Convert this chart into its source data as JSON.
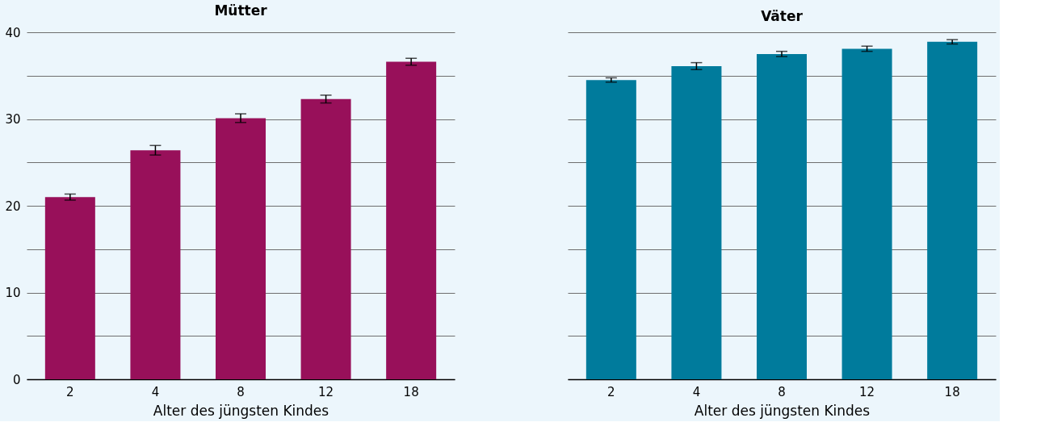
{
  "chart_data": [
    {
      "type": "bar",
      "title": "Mütter",
      "xlabel": "Alter des jüngsten Kindes",
      "categories": [
        "2",
        "4",
        "8",
        "12",
        "18"
      ],
      "values": [
        21.0,
        26.4,
        30.1,
        32.3,
        36.6
      ],
      "errors": [
        0.35,
        0.55,
        0.5,
        0.45,
        0.4
      ],
      "color": "#98105a",
      "ylim": [
        0,
        40
      ],
      "yticks": [
        0,
        {
          "value": 5,
          "label": null
        },
        10,
        {
          "value": 15,
          "label": null
        },
        20,
        {
          "value": 25,
          "label": null
        },
        30,
        {
          "value": 35,
          "label": null
        },
        40
      ],
      "grid": "y"
    },
    {
      "type": "bar",
      "title": "Väter",
      "xlabel": "Alter des jüngsten Kindes",
      "categories": [
        "2",
        "4",
        "8",
        "12",
        "18"
      ],
      "values": [
        34.5,
        36.1,
        37.5,
        38.1,
        38.9
      ],
      "errors": [
        0.25,
        0.4,
        0.3,
        0.3,
        0.25
      ],
      "color": "#007b9c",
      "ylim": [
        0,
        40
      ],
      "yticks": [
        0,
        {
          "value": 5,
          "label": null
        },
        10,
        {
          "value": 15,
          "label": null
        },
        20,
        {
          "value": 25,
          "label": null
        },
        30,
        {
          "value": 35,
          "label": null
        },
        40
      ],
      "grid": "y",
      "tick_labels": "x"
    }
  ]
}
